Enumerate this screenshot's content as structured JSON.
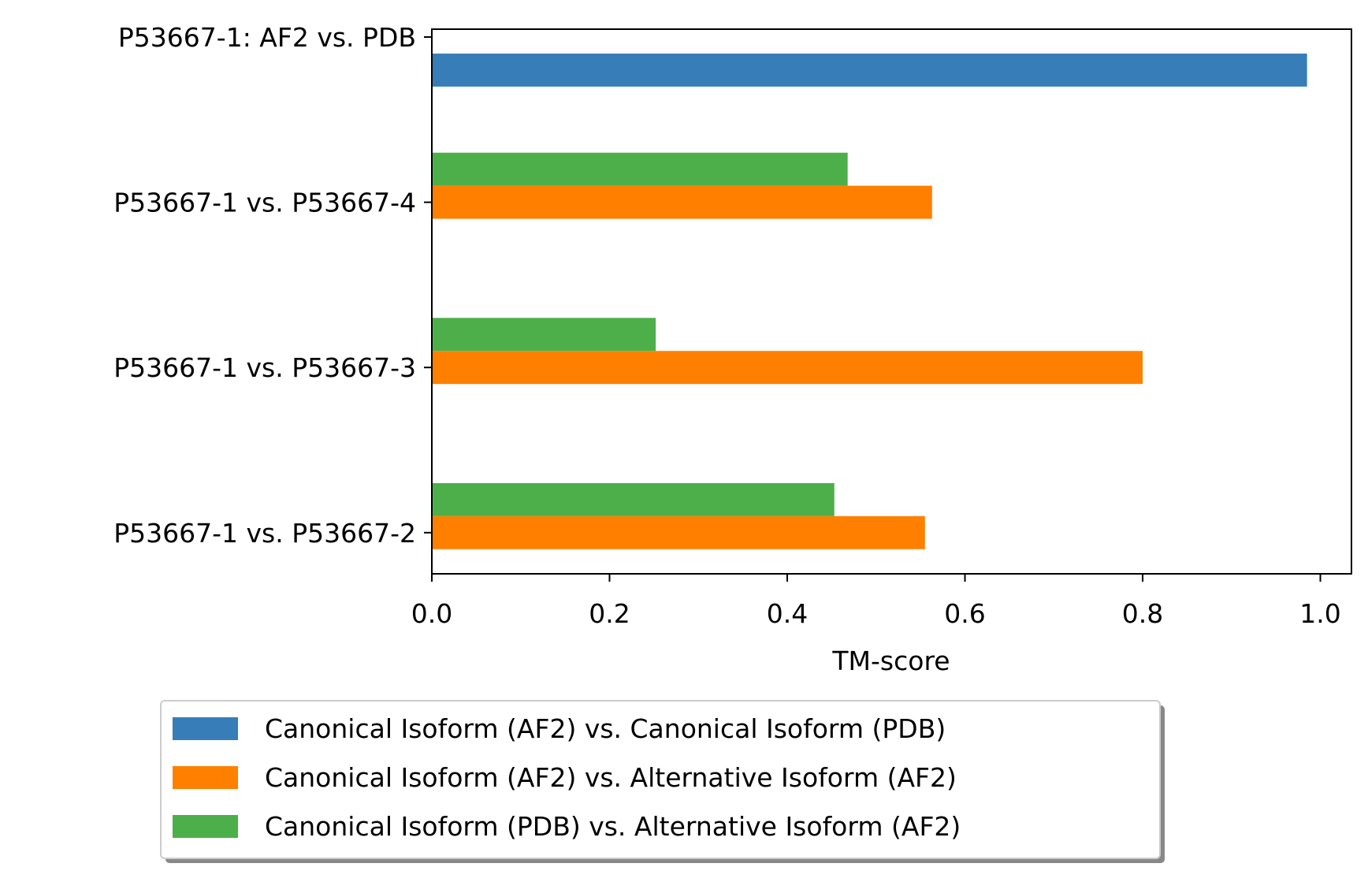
{
  "chart_data": {
    "type": "bar",
    "orientation": "horizontal",
    "categories": [
      "P53667-1: AF2 vs. PDB",
      "P53667-1 vs. P53667-4",
      "P53667-1 vs. P53667-3",
      "P53667-1 vs. P53667-2"
    ],
    "series": [
      {
        "name": "Canonical Isoform (AF2) vs. Canonical Isoform (PDB)",
        "color": "#377eb8",
        "values": [
          0.985,
          null,
          null,
          null
        ]
      },
      {
        "name": "Canonical Isoform (AF2) vs. Alternative Isoform (AF2)",
        "color": "#ff7f00",
        "values": [
          null,
          0.563,
          0.8,
          0.555
        ]
      },
      {
        "name": "Canonical Isoform (PDB) vs. Alternative Isoform (AF2)",
        "color": "#4daf4a",
        "values": [
          null,
          0.468,
          0.252,
          0.453
        ]
      }
    ],
    "xlabel": "TM-score",
    "ylabel": "",
    "xlim": [
      0,
      1.035
    ],
    "xticks": [
      "0.0",
      "0.2",
      "0.4",
      "0.6",
      "0.8",
      "1.0"
    ],
    "grid": false,
    "legend_placement": "bottom-center, below axes, with shadow"
  }
}
